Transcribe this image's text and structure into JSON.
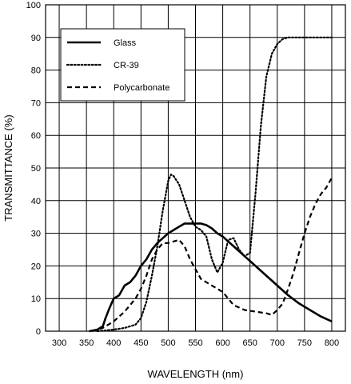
{
  "chart_data": {
    "type": "line",
    "xlabel": "WAVELENGTH (nm)",
    "ylabel": "TRANSMITTANCE (%)",
    "xlim": [
      275,
      825
    ],
    "ylim": [
      0,
      100
    ],
    "xticks": [
      300,
      350,
      400,
      450,
      500,
      550,
      600,
      650,
      700,
      750,
      800
    ],
    "yticks": [
      0,
      10,
      20,
      30,
      40,
      50,
      60,
      70,
      80,
      90,
      100
    ],
    "grid": true,
    "legend_position": "top-left",
    "series": [
      {
        "name": "Glass",
        "style": "solid",
        "color": "#000000",
        "x": [
          355,
          370,
          380,
          385,
          392,
          400,
          410,
          420,
          430,
          440,
          450,
          460,
          470,
          480,
          490,
          500,
          510,
          520,
          530,
          540,
          550,
          560,
          570,
          580,
          590,
          600,
          620,
          640,
          660,
          680,
          700,
          720,
          740,
          760,
          780,
          800
        ],
        "y": [
          0,
          0.5,
          1.5,
          4,
          7,
          10,
          11,
          14,
          15,
          17,
          20,
          22,
          25,
          27,
          28.5,
          30,
          31,
          32,
          33,
          33,
          33,
          33,
          32.5,
          31.5,
          30,
          29,
          26,
          23,
          20,
          17,
          14,
          11,
          8.5,
          6.5,
          4.5,
          3
        ]
      },
      {
        "name": "CR-39",
        "style": "dotted",
        "color": "#000000",
        "x": [
          370,
          400,
          420,
          440,
          450,
          460,
          470,
          480,
          490,
          500,
          505,
          510,
          520,
          530,
          540,
          550,
          560,
          570,
          580,
          590,
          600,
          610,
          620,
          630,
          640,
          650,
          660,
          670,
          680,
          690,
          700,
          710,
          720,
          740,
          760,
          780,
          800
        ],
        "y": [
          0,
          0.5,
          1,
          2,
          4,
          9,
          17,
          26,
          37,
          46,
          48,
          47.5,
          45,
          40,
          35,
          32,
          31,
          29,
          22,
          18,
          21,
          28,
          28.5,
          25,
          23,
          24,
          42,
          63,
          78,
          85,
          88,
          89.5,
          90,
          90,
          90,
          90,
          90
        ]
      },
      {
        "name": "Polycarbonate",
        "style": "dashed",
        "color": "#000000",
        "x": [
          360,
          380,
          400,
          420,
          440,
          450,
          460,
          470,
          480,
          490,
          500,
          510,
          520,
          530,
          540,
          550,
          560,
          570,
          580,
          590,
          600,
          610,
          620,
          640,
          660,
          680,
          690,
          700,
          710,
          720,
          730,
          740,
          750,
          760,
          770,
          780,
          790,
          800
        ],
        "y": [
          0,
          1,
          3,
          6,
          10,
          13,
          17,
          22,
          25,
          27,
          27,
          27.5,
          28,
          26,
          22,
          19,
          16,
          15,
          14,
          13,
          12,
          10,
          8,
          6.5,
          6,
          5.5,
          5,
          6.5,
          8.5,
          13,
          18,
          24,
          30,
          35,
          39,
          42,
          44,
          47
        ]
      }
    ]
  }
}
